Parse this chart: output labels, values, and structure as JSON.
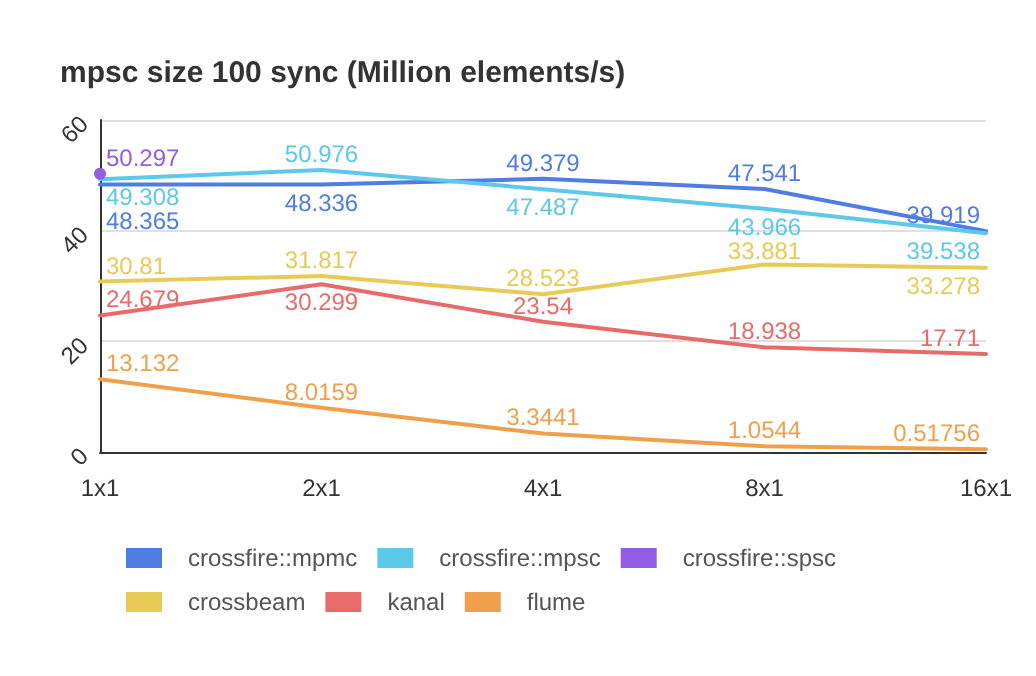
{
  "chart_data": {
    "type": "line",
    "title": "mpsc size 100 sync (Million elements/s)",
    "categories": [
      "1x1",
      "2x1",
      "4x1",
      "8x1",
      "16x1"
    ],
    "series": [
      {
        "name": "crossfire::mpmc",
        "color": "#4f7de2",
        "values": [
          48.365,
          48.336,
          49.379,
          47.541,
          39.919
        ]
      },
      {
        "name": "crossfire::mpsc",
        "color": "#5cc8ea",
        "values": [
          49.308,
          50.976,
          47.487,
          43.966,
          39.538
        ]
      },
      {
        "name": "crossfire::spsc",
        "color": "#935ce3",
        "values": [
          50.297,
          null,
          null,
          null,
          null
        ],
        "marker": "circle"
      },
      {
        "name": "crossbeam",
        "color": "#e8cb56",
        "values": [
          30.81,
          31.817,
          28.523,
          33.881,
          33.278
        ]
      },
      {
        "name": "kanal",
        "color": "#e86b6b",
        "values": [
          24.679,
          30.299,
          23.54,
          18.938,
          17.71
        ]
      },
      {
        "name": "flume",
        "color": "#f0a04a",
        "values": [
          13.132,
          8.0159,
          3.3441,
          1.0544,
          0.51756
        ]
      }
    ],
    "ylim": [
      0,
      60
    ],
    "yticks": [
      0,
      20,
      40,
      60
    ],
    "grid": "y",
    "legend": "bottom",
    "marker": "none",
    "data_labels": true
  }
}
